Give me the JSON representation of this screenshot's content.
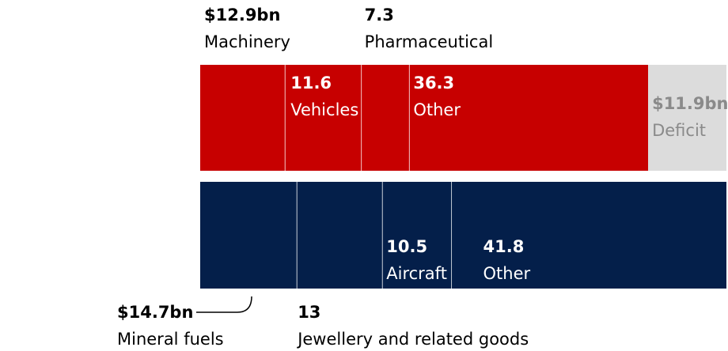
{
  "chart_data": {
    "type": "bar",
    "stacked": true,
    "orientation": "horizontal",
    "unit": "$bn",
    "series": [
      {
        "color": "#c70000",
        "segments": [
          {
            "label": "Machinery",
            "value": 12.9,
            "value_text": "$12.9bn"
          },
          {
            "label": "Vehicles",
            "value": 11.6,
            "value_text": "11.6"
          },
          {
            "label": "Pharmaceutical",
            "value": 7.3,
            "value_text": "7.3"
          },
          {
            "label": "Other",
            "value": 36.3,
            "value_text": "36.3"
          },
          {
            "label": "Deficit",
            "value": 11.9,
            "value_text": "$11.9bn",
            "color": "#dcdcdc",
            "text_color": "#8a8a8a"
          }
        ]
      },
      {
        "color": "#041f4a",
        "segments": [
          {
            "label": "Mineral fuels",
            "value": 14.7,
            "value_text": "$14.7bn"
          },
          {
            "label": "Jewellery and related goods",
            "value": 13,
            "value_text": "13"
          },
          {
            "label": "Aircraft",
            "value": 10.5,
            "value_text": "10.5"
          },
          {
            "label": "Other",
            "value": 41.8,
            "value_text": "41.8"
          }
        ]
      }
    ]
  }
}
